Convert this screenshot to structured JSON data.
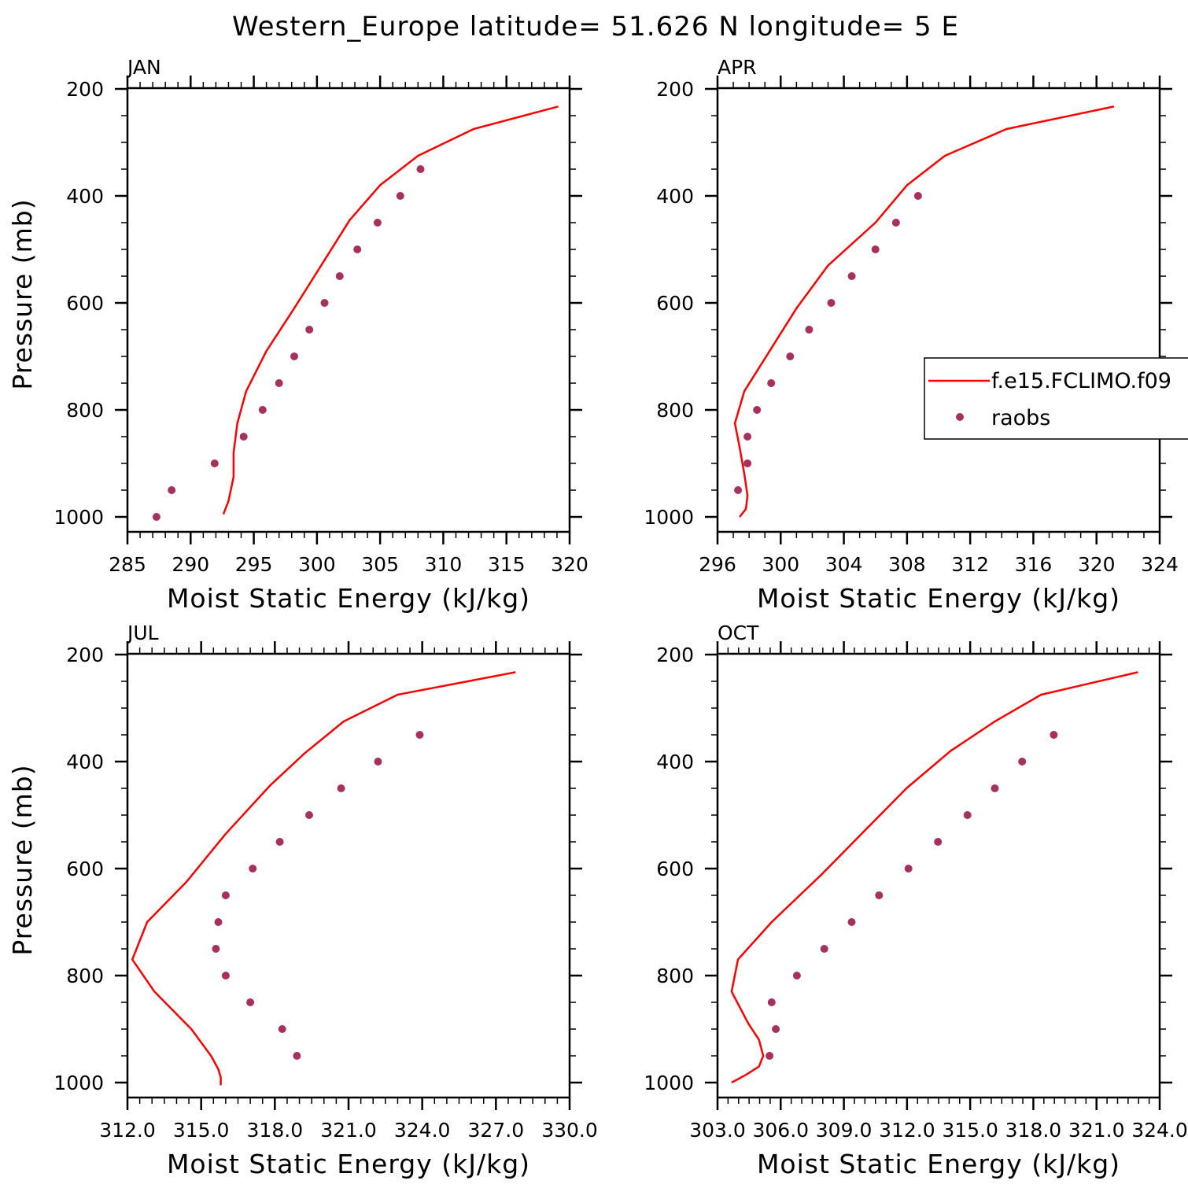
{
  "figure": {
    "title": "Western_Europe  latitude= 51.626 N longitude= 5 E",
    "colors": {
      "model": "#ff0000",
      "obs": "#a8305e",
      "axis": "#000000"
    }
  },
  "legend": {
    "model_label": "f.e15.FCLIMO.f09",
    "obs_label": "raobs"
  },
  "chart_data": [
    {
      "type": "line",
      "panel": "JAN",
      "xlabel": "Moist Static Energy (kJ/kg)",
      "ylabel": "Pressure (mb)",
      "xlim": [
        285,
        320
      ],
      "ylim": [
        1000,
        200
      ],
      "xticks": [
        285,
        290,
        295,
        300,
        305,
        310,
        315,
        320
      ],
      "xtick_labels": [
        "285",
        "290",
        "295",
        "300",
        "305",
        "310",
        "315",
        "320"
      ],
      "xminor_step": 1,
      "yticks": [
        200,
        400,
        600,
        800,
        1000
      ],
      "yminor_step": 50,
      "series": [
        {
          "name": "f.e15.FCLIMO.f09",
          "kind": "line",
          "x": [
            319.1,
            312.4,
            308.0,
            305.0,
            302.6,
            298.2,
            296.0,
            294.4,
            293.7,
            293.4,
            293.4,
            293.0,
            292.6
          ],
          "y": [
            233,
            275,
            325,
            380,
            445,
            610,
            690,
            765,
            825,
            880,
            925,
            970,
            995
          ]
        },
        {
          "name": "raobs",
          "kind": "scatter",
          "x": [
            308.2,
            306.6,
            304.8,
            303.2,
            301.8,
            300.6,
            299.4,
            298.2,
            297.0,
            295.7,
            294.2,
            291.9,
            288.5,
            287.3
          ],
          "y": [
            350,
            400,
            450,
            500,
            550,
            600,
            650,
            700,
            750,
            800,
            850,
            900,
            950,
            1000
          ]
        }
      ]
    },
    {
      "type": "line",
      "panel": "APR",
      "xlabel": "Moist Static Energy (kJ/kg)",
      "ylabel": "",
      "xlim": [
        296,
        324
      ],
      "ylim": [
        1000,
        200
      ],
      "xticks": [
        296,
        300,
        304,
        308,
        312,
        316,
        320,
        324
      ],
      "xtick_labels": [
        "296",
        "300",
        "304",
        "308",
        "312",
        "316",
        "320",
        "324"
      ],
      "xminor_step": 1,
      "yticks": [
        200,
        400,
        600,
        800,
        1000
      ],
      "yminor_step": 50,
      "series": [
        {
          "name": "f.e15.FCLIMO.f09",
          "kind": "line",
          "x": [
            321.1,
            314.3,
            310.4,
            308.0,
            306.0,
            303.0,
            301.0,
            297.7,
            297.1,
            297.4,
            297.7,
            297.9,
            297.8,
            297.4
          ],
          "y": [
            233,
            275,
            325,
            380,
            450,
            530,
            610,
            765,
            825,
            870,
            920,
            960,
            985,
            1000
          ]
        },
        {
          "name": "raobs",
          "kind": "scatter",
          "x": [
            308.7,
            307.3,
            306.0,
            304.5,
            303.2,
            301.8,
            300.6,
            299.4,
            298.5,
            297.9,
            297.9,
            297.3
          ],
          "y": [
            400,
            450,
            500,
            550,
            600,
            650,
            700,
            750,
            800,
            850,
            900,
            950
          ]
        }
      ]
    },
    {
      "type": "line",
      "panel": "JUL",
      "xlabel": "Moist Static Energy (kJ/kg)",
      "ylabel": "Pressure (mb)",
      "xlim": [
        312.0,
        330.0
      ],
      "ylim": [
        1000,
        200
      ],
      "xticks": [
        312,
        315,
        318,
        321,
        324,
        327,
        330
      ],
      "xtick_labels": [
        "312.0",
        "315.0",
        "318.0",
        "321.0",
        "324.0",
        "327.0",
        "330.0"
      ],
      "xminor_step": 0.5,
      "yticks": [
        200,
        400,
        600,
        800,
        1000
      ],
      "yminor_step": 50,
      "series": [
        {
          "name": "f.e15.FCLIMO.f09",
          "kind": "line",
          "x": [
            327.8,
            323.0,
            320.8,
            319.2,
            317.8,
            316.0,
            314.4,
            312.8,
            312.2,
            313.1,
            314.6,
            315.4,
            315.7,
            315.8,
            315.8
          ],
          "y": [
            233,
            275,
            325,
            385,
            445,
            535,
            625,
            700,
            770,
            830,
            900,
            950,
            975,
            990,
            1005
          ]
        },
        {
          "name": "raobs",
          "kind": "scatter",
          "x": [
            323.9,
            322.2,
            320.7,
            319.4,
            318.2,
            317.1,
            316.0,
            315.7,
            315.6,
            316.0,
            317.0,
            318.3,
            318.9
          ],
          "y": [
            350,
            400,
            450,
            500,
            550,
            600,
            650,
            700,
            750,
            800,
            850,
            900,
            950
          ]
        }
      ]
    },
    {
      "type": "line",
      "panel": "OCT",
      "xlabel": "Moist Static Energy (kJ/kg)",
      "ylabel": "",
      "xlim": [
        303.03,
        324.03
      ],
      "ylim": [
        1000,
        200
      ],
      "xticks": [
        303.03,
        306.03,
        309.03,
        312.03,
        315.03,
        318.03,
        321.03,
        324.03
      ],
      "xtick_labels": [
        "303.0",
        "306.0",
        "309.0",
        "312.0",
        "315.0",
        "318.0",
        "321.0",
        "324.0"
      ],
      "xminor_step": 0.5,
      "yticks": [
        200,
        400,
        600,
        800,
        1000
      ],
      "yminor_step": 50,
      "series": [
        {
          "name": "f.e15.FCLIMO.f09",
          "kind": "line",
          "x": [
            323.0,
            318.4,
            316.2,
            314.1,
            312.0,
            310.0,
            308.0,
            305.6,
            304.0,
            303.7,
            304.5,
            305.0,
            305.2,
            305.0,
            304.4,
            303.7
          ],
          "y": [
            233,
            275,
            325,
            380,
            450,
            530,
            610,
            700,
            770,
            830,
            890,
            920,
            950,
            970,
            985,
            1000
          ]
        },
        {
          "name": "raobs",
          "kind": "scatter",
          "x": [
            319.0,
            317.5,
            316.2,
            314.9,
            313.5,
            312.1,
            310.7,
            309.4,
            308.1,
            306.8,
            305.6,
            305.8,
            305.5
          ],
          "y": [
            350,
            400,
            450,
            500,
            550,
            600,
            650,
            700,
            750,
            800,
            850,
            900,
            950
          ]
        }
      ]
    }
  ]
}
